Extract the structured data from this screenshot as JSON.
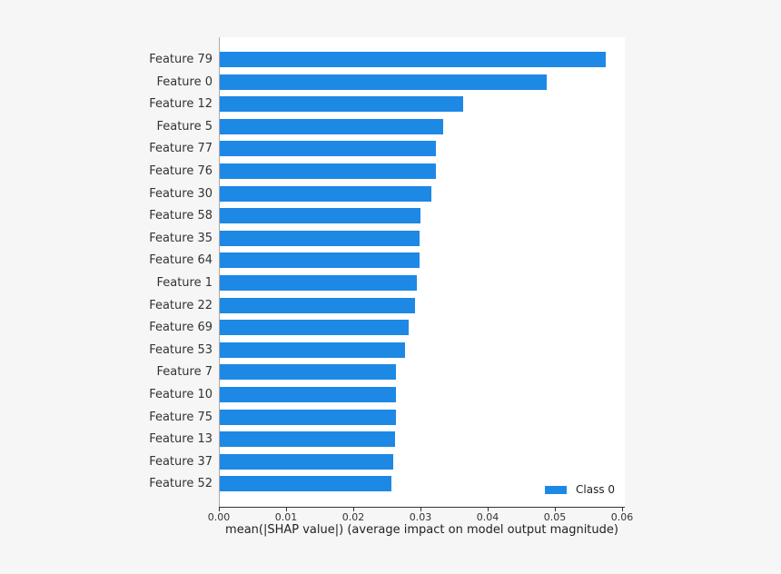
{
  "chart_data": {
    "type": "bar",
    "orientation": "horizontal",
    "title": "",
    "xlabel": "mean(|SHAP value|) (average impact on model output magnitude)",
    "ylabel": "",
    "xlim": [
      0,
      0.06
    ],
    "xticks": [
      "0.00",
      "0.01",
      "0.02",
      "0.03",
      "0.04",
      "0.05",
      "0.06"
    ],
    "grid": false,
    "legend": {
      "position": "lower right",
      "entries": [
        "Class 0"
      ]
    },
    "color": "#1e88e5",
    "categories": [
      "Feature 79",
      "Feature 0",
      "Feature 12",
      "Feature 5",
      "Feature 77",
      "Feature 76",
      "Feature 30",
      "Feature 58",
      "Feature 35",
      "Feature 64",
      "Feature 1",
      "Feature 22",
      "Feature 69",
      "Feature 53",
      "Feature 7",
      "Feature 10",
      "Feature 75",
      "Feature 13",
      "Feature 37",
      "Feature 52"
    ],
    "series": [
      {
        "name": "Class 0",
        "values": [
          0.0576,
          0.0488,
          0.0364,
          0.0334,
          0.0323,
          0.0323,
          0.0316,
          0.03,
          0.0299,
          0.0299,
          0.0295,
          0.0292,
          0.0283,
          0.0277,
          0.0264,
          0.0264,
          0.0264,
          0.0262,
          0.0259,
          0.0257
        ]
      }
    ]
  }
}
